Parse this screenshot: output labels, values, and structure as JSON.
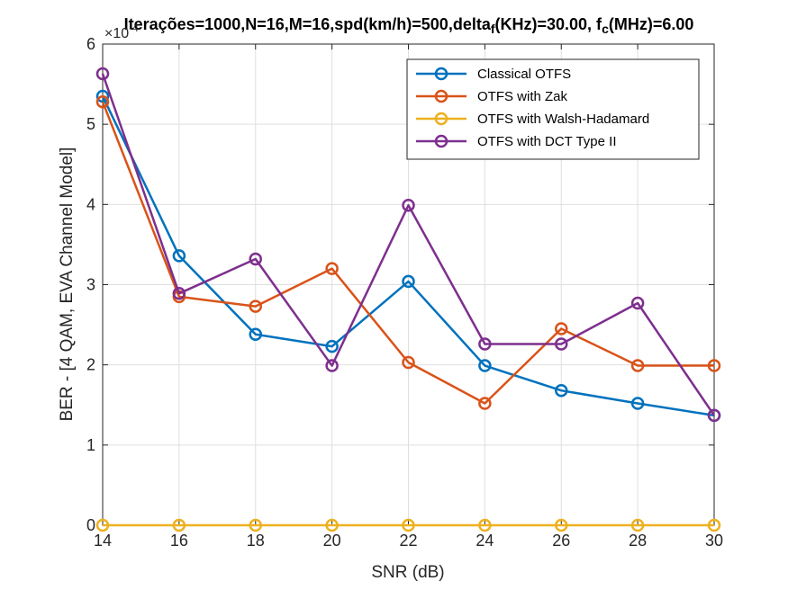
{
  "chart_data": {
    "type": "line",
    "title": {
      "main": "Iterações=1000,N=16,M=16,spd(km/h)=500,delta",
      "sub1": "f",
      "mid": "(KHz)=30.00, f",
      "sub2": "c",
      "end": "(MHz)=6.00"
    },
    "xlabel": "SNR (dB)",
    "ylabel": "BER - [4 QAM, EVA Channel Model]",
    "y_exponent": {
      "base": "×10",
      "power": "-4"
    },
    "xlim": [
      14,
      30
    ],
    "ylim": [
      0,
      6
    ],
    "y_scale_factor": 0.0001,
    "x_ticks": [
      "14",
      "16",
      "18",
      "20",
      "22",
      "24",
      "26",
      "28",
      "30"
    ],
    "y_ticks": [
      "0",
      "1",
      "2",
      "3",
      "4",
      "5",
      "6"
    ],
    "grid": true,
    "legend_position": "top-right",
    "x": [
      14,
      16,
      18,
      20,
      22,
      24,
      26,
      28,
      30
    ],
    "series": [
      {
        "name": "Classical OTFS",
        "color": "#0072BD",
        "values": [
          5.35,
          3.36,
          2.38,
          2.23,
          3.04,
          1.99,
          1.68,
          1.52,
          1.37
        ]
      },
      {
        "name": "OTFS with Zak",
        "color": "#D95319",
        "values": [
          5.28,
          2.85,
          2.73,
          3.2,
          2.03,
          1.52,
          2.45,
          1.99,
          1.99
        ]
      },
      {
        "name": "OTFS with Walsh-Hadamard",
        "color": "#EDB120",
        "values": [
          0,
          0,
          0,
          0,
          0,
          0,
          0,
          0,
          0
        ]
      },
      {
        "name": "OTFS with DCT Type II",
        "color": "#7E2F8E",
        "values": [
          5.63,
          2.89,
          3.32,
          1.99,
          3.99,
          2.26,
          2.26,
          2.77,
          1.37
        ]
      }
    ]
  }
}
